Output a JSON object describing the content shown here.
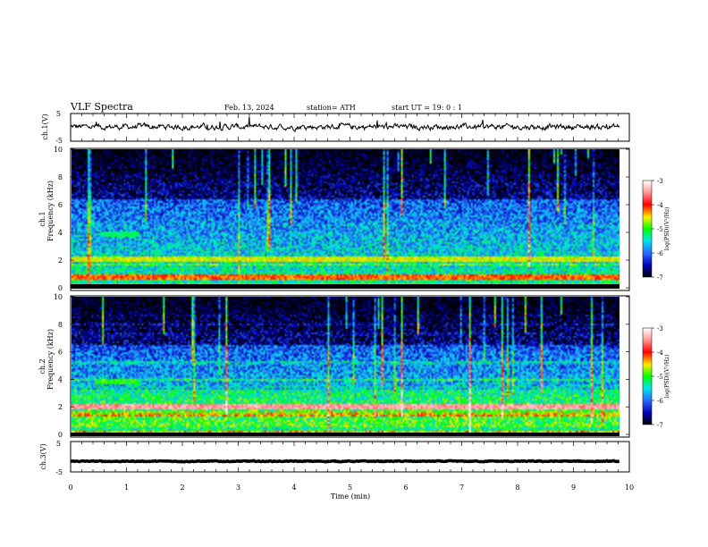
{
  "header": {
    "title": "VLF  Spectra",
    "date": "Feb. 13, 2024",
    "station": "station= ATH",
    "start": "start  UT  =    19: 0   : 1"
  },
  "chart_data": [
    {
      "type": "line",
      "id": "ch1-waveform",
      "ylabel": "ch.1(V)",
      "ylim": [
        -5,
        5
      ],
      "yticks": [
        "5",
        "-5"
      ],
      "xlim": [
        0,
        10
      ],
      "mean_level": 0.2,
      "noise_amplitude": 0.7,
      "color": "#000000"
    },
    {
      "type": "heatmap",
      "id": "ch1-spectrogram",
      "ylabel": "ch.1\nFrequency  (kHz)",
      "ylabel_lines": [
        "ch.1",
        "Frequency  (kHz)"
      ],
      "ylim": [
        0,
        10
      ],
      "yticks": [
        "0",
        "2",
        "4",
        "6",
        "8",
        "10"
      ],
      "xlim": [
        0,
        9.8
      ],
      "colorbar": {
        "label": "log(PSD)(V²/Hz)",
        "ticks": [
          "-3",
          "-4",
          "-5",
          "-6",
          "-7"
        ],
        "range": [
          -7,
          -3
        ]
      },
      "features": [
        {
          "freq_khz": 2.2,
          "level": -4.6,
          "note": "continuous band"
        },
        {
          "freq_khz": 0.9,
          "level": -4.2,
          "note": "continuous band"
        },
        {
          "freq_khz": 4.0,
          "t_start": 0.5,
          "t_end": 1.2,
          "level": -5.2
        }
      ]
    },
    {
      "type": "heatmap",
      "id": "ch2-spectrogram",
      "ylabel": "ch.2\nFrequency  (kHz)",
      "ylabel_lines": [
        "ch.2",
        "Frequency  (kHz)"
      ],
      "ylim": [
        0,
        10
      ],
      "yticks": [
        "0",
        "2",
        "4",
        "6",
        "8",
        "10"
      ],
      "xlim": [
        0,
        9.8
      ],
      "colorbar": {
        "label": "log(PSD)(V²/Hz)",
        "ticks": [
          "-3",
          "-4",
          "-5",
          "-6",
          "-7"
        ],
        "range": [
          -7,
          -3
        ]
      },
      "features": [
        {
          "freq_khz": 2.0,
          "level": -3.8,
          "note": "strong band"
        },
        {
          "freq_khz": 3.8,
          "t_start": 0.4,
          "t_end": 1.2,
          "level": -5.0
        }
      ]
    },
    {
      "type": "line",
      "id": "ch3-waveform",
      "ylabel": "ch.3(V)",
      "ylim": [
        -5,
        5
      ],
      "yticks": [
        "5",
        "-5"
      ],
      "xlim": [
        0,
        10
      ],
      "mean_level": -1.5,
      "noise_amplitude": 0.1,
      "color": "#000000"
    }
  ],
  "xaxis": {
    "label": "Time  (min)",
    "ticks": [
      "0",
      "1",
      "2",
      "3",
      "4",
      "5",
      "6",
      "7",
      "8",
      "9",
      "10"
    ]
  }
}
